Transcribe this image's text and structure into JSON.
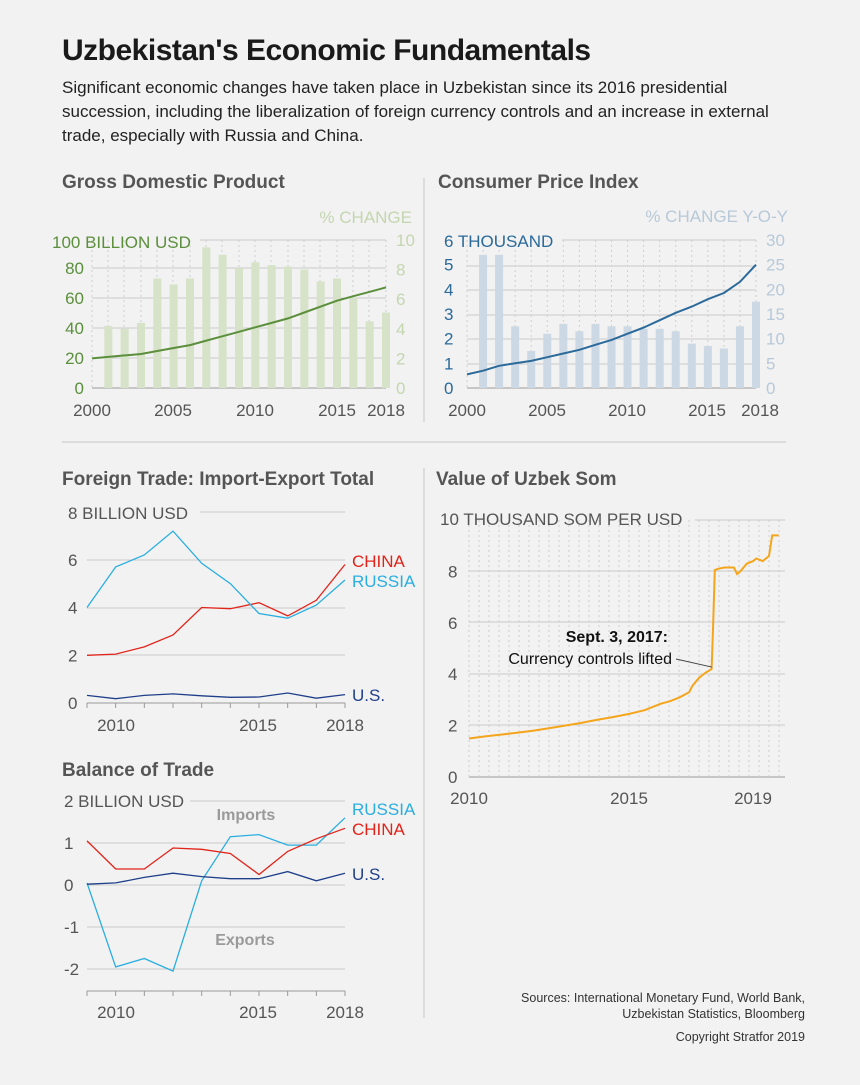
{
  "header": {
    "title": "Uzbekistan's Economic Fundamentals",
    "subtitle": "Significant economic changes have taken place in Uzbekistan since its 2016 presidential succession, including the liberalization of foreign currency controls and an increase in external trade, especially with Russia and China."
  },
  "footer": {
    "sources_line1": "Sources: International Monetary Fund, World Bank,",
    "sources_line2": "Uzbekistan Statistics, Bloomberg",
    "copyright": "Copyright Stratfor 2019"
  },
  "colors": {
    "gdp_line": "#5b8f3c",
    "gdp_bar": "#d6e3c8",
    "cpi_line": "#2b6a9a",
    "cpi_bar": "#ccd8e3",
    "china": "#e2231a",
    "russia": "#2aaee0",
    "us": "#1f3f8a",
    "som": "#f5a51c"
  },
  "chart_data": [
    {
      "id": "gdp",
      "type": "bar+line",
      "title": "Gross Domestic Product",
      "left_axis_label": "100 BILLION USD",
      "right_axis_label": "% CHANGE",
      "y_ticks": [
        "0",
        "20",
        "40",
        "60",
        "80"
      ],
      "y2_ticks": [
        "0",
        "2",
        "4",
        "6",
        "8",
        "10"
      ],
      "x_ticks": [
        "2000",
        "2005",
        "2010",
        "2015",
        "2018"
      ],
      "ylim": [
        0,
        100
      ],
      "y2lim": [
        0,
        10
      ],
      "xlim": [
        2000,
        2018
      ],
      "line": {
        "x": [
          2000,
          2001,
          2002,
          2003,
          2004,
          2005,
          2006,
          2007,
          2008,
          2009,
          2010,
          2011,
          2012,
          2013,
          2014,
          2015,
          2016,
          2017,
          2018
        ],
        "y": [
          20,
          21,
          22,
          23,
          25,
          27,
          29,
          32,
          35,
          38,
          41,
          44,
          47,
          51,
          55,
          59,
          62,
          65,
          68
        ]
      },
      "bars": {
        "x": [
          2001,
          2002,
          2003,
          2004,
          2005,
          2006,
          2007,
          2008,
          2009,
          2010,
          2011,
          2012,
          2013,
          2014,
          2015,
          2016,
          2017,
          2018
        ],
        "y": [
          4.2,
          4.0,
          4.4,
          7.4,
          7.0,
          7.4,
          9.5,
          9.0,
          8.1,
          8.5,
          8.3,
          8.2,
          8.0,
          7.2,
          7.4,
          6.1,
          4.5,
          5.1
        ]
      }
    },
    {
      "id": "cpi",
      "type": "bar+line",
      "title": "Consumer Price Index",
      "left_axis_label": "6 THOUSAND",
      "right_axis_label": "% CHANGE Y-O-Y",
      "y_ticks": [
        "0",
        "1",
        "2",
        "3",
        "4",
        "5"
      ],
      "y2_ticks": [
        "0",
        "5",
        "10",
        "15",
        "20",
        "25",
        "30"
      ],
      "x_ticks": [
        "2000",
        "2005",
        "2010",
        "2015",
        "2018"
      ],
      "ylim": [
        0,
        6
      ],
      "y2lim": [
        0,
        30
      ],
      "xlim": [
        2000,
        2018
      ],
      "line": {
        "x": [
          2000,
          2001,
          2002,
          2003,
          2004,
          2005,
          2006,
          2007,
          2008,
          2009,
          2010,
          2011,
          2012,
          2013,
          2014,
          2015,
          2016,
          2017,
          2018
        ],
        "y": [
          0.55,
          0.7,
          0.9,
          1.0,
          1.1,
          1.25,
          1.4,
          1.55,
          1.75,
          1.95,
          2.2,
          2.45,
          2.75,
          3.05,
          3.3,
          3.6,
          3.85,
          4.3,
          5.0
        ]
      },
      "bars": {
        "x": [
          2001,
          2002,
          2003,
          2004,
          2005,
          2006,
          2007,
          2008,
          2009,
          2010,
          2011,
          2012,
          2013,
          2014,
          2015,
          2016,
          2017,
          2018
        ],
        "y": [
          27,
          27,
          12.5,
          7.5,
          11,
          13,
          11.5,
          13,
          12.5,
          12.5,
          12,
          12,
          11.5,
          9,
          8.5,
          8,
          12.5,
          17.5
        ]
      }
    },
    {
      "id": "trade",
      "type": "line",
      "title": "Foreign Trade: Import-Export Total",
      "axis_label": "8 BILLION USD",
      "y_ticks": [
        "0",
        "2",
        "4",
        "6"
      ],
      "x_ticks": [
        "2010",
        "2015",
        "2018"
      ],
      "ylim": [
        0,
        8
      ],
      "xlim": [
        2009,
        2018
      ],
      "series": [
        {
          "name": "CHINA",
          "x": [
            2009,
            2010,
            2011,
            2012,
            2013,
            2014,
            2015,
            2016,
            2017,
            2018
          ],
          "y": [
            2.0,
            2.05,
            2.35,
            2.85,
            4.0,
            3.95,
            4.2,
            3.65,
            4.3,
            5.8
          ]
        },
        {
          "name": "RUSSIA",
          "x": [
            2009,
            2010,
            2011,
            2012,
            2013,
            2014,
            2015,
            2016,
            2017,
            2018
          ],
          "y": [
            4.0,
            5.7,
            6.2,
            7.2,
            5.85,
            5.0,
            3.75,
            3.55,
            4.1,
            5.15
          ]
        },
        {
          "name": "U.S.",
          "x": [
            2009,
            2010,
            2011,
            2012,
            2013,
            2014,
            2015,
            2016,
            2017,
            2018
          ],
          "y": [
            0.32,
            0.18,
            0.32,
            0.38,
            0.3,
            0.24,
            0.25,
            0.42,
            0.2,
            0.35
          ]
        }
      ]
    },
    {
      "id": "som",
      "type": "line",
      "title": "Value of Uzbek Som",
      "axis_label": "10 THOUSAND SOM PER USD",
      "y_ticks": [
        "0",
        "2",
        "4",
        "6",
        "8"
      ],
      "x_ticks": [
        "2010",
        "2015",
        "2019"
      ],
      "ylim": [
        0,
        10
      ],
      "xlim": [
        2010,
        2019.9
      ],
      "annotation": {
        "title": "Sept. 3, 2017:",
        "text": "Currency controls lifted",
        "x": 2017.67,
        "y": 4.2
      },
      "series": [
        {
          "name": "",
          "x": [
            2010.0,
            2010.5,
            2011.0,
            2011.5,
            2012.0,
            2012.5,
            2013.0,
            2013.5,
            2014.0,
            2014.5,
            2015.0,
            2015.5,
            2016.0,
            2016.3,
            2016.6,
            2016.9,
            2017.0,
            2017.2,
            2017.4,
            2017.6,
            2017.65,
            2017.7,
            2017.8,
            2018.0,
            2018.3,
            2018.4,
            2018.5,
            2018.7,
            2018.9,
            2019.0,
            2019.2,
            2019.4,
            2019.5,
            2019.7
          ],
          "y": [
            1.5,
            1.58,
            1.65,
            1.72,
            1.8,
            1.9,
            2.0,
            2.1,
            2.22,
            2.33,
            2.45,
            2.6,
            2.85,
            2.95,
            3.1,
            3.3,
            3.55,
            3.85,
            4.05,
            4.2,
            6.0,
            8.05,
            8.1,
            8.15,
            8.15,
            7.9,
            8.0,
            8.3,
            8.4,
            8.5,
            8.4,
            8.6,
            9.4,
            9.4
          ]
        }
      ]
    },
    {
      "id": "balance",
      "type": "line",
      "title": "Balance of Trade",
      "axis_label": "2 BILLION USD",
      "y_ticks": [
        "1",
        "0",
        "-1",
        "-2"
      ],
      "x_ticks": [
        "2010",
        "2015",
        "2018"
      ],
      "ylim": [
        -2.5,
        2
      ],
      "xlim": [
        2009,
        2018
      ],
      "region_labels": [
        "Imports",
        "Exports"
      ],
      "series": [
        {
          "name": "RUSSIA",
          "x": [
            2009,
            2010,
            2011,
            2012,
            2013,
            2014,
            2015,
            2016,
            2017,
            2018
          ],
          "y": [
            0.05,
            -1.95,
            -1.75,
            -2.05,
            0.1,
            1.15,
            1.2,
            0.95,
            0.95,
            1.6
          ]
        },
        {
          "name": "CHINA",
          "x": [
            2009,
            2010,
            2011,
            2012,
            2013,
            2014,
            2015,
            2016,
            2017,
            2018
          ],
          "y": [
            1.05,
            0.38,
            0.38,
            0.88,
            0.85,
            0.75,
            0.25,
            0.8,
            1.1,
            1.35
          ]
        },
        {
          "name": "U.S.",
          "x": [
            2009,
            2010,
            2011,
            2012,
            2013,
            2014,
            2015,
            2016,
            2017,
            2018
          ],
          "y": [
            0.02,
            0.05,
            0.18,
            0.28,
            0.2,
            0.15,
            0.15,
            0.32,
            0.1,
            0.28
          ]
        }
      ]
    }
  ]
}
